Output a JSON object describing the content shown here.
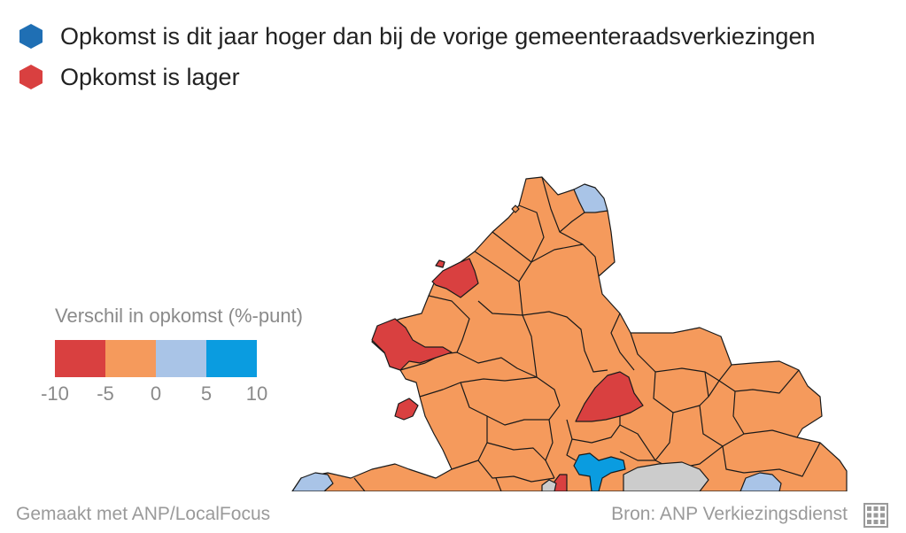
{
  "legend": {
    "items": [
      {
        "label": "Opkomst is dit jaar hoger dan bij de vorige gemeenteraadsverkiezingen",
        "color": "#1f6fb4"
      },
      {
        "label": "Opkomst is lager",
        "color": "#d94040"
      }
    ]
  },
  "scale": {
    "title": "Verschil in opkomst (%-punt)",
    "colors": [
      "#d94040",
      "#f59a5c",
      "#a9c4e7",
      "#0a9ce0"
    ],
    "ticks": [
      "-10",
      "-5",
      "0",
      "5",
      "10"
    ]
  },
  "map": {
    "colors": {
      "orange": "#f59a5c",
      "red": "#d94040",
      "lightblue": "#a9c4e7",
      "blue": "#0a9ce0",
      "grey": "#cccccc"
    }
  },
  "footer": {
    "credit": "Gemaakt met ANP/LocalFocus",
    "source": "Bron: ANP Verkiezingsdienst",
    "icon": "grid-icon"
  }
}
